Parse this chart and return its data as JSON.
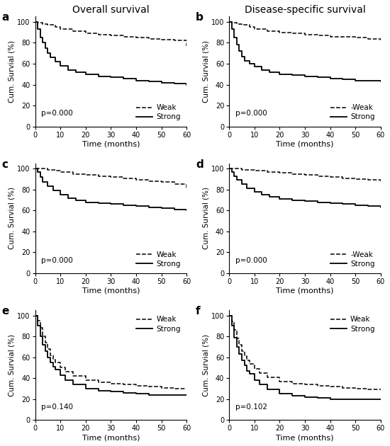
{
  "panels": [
    {
      "label": "a",
      "title": "Overall survival",
      "p_value": "p=0.000",
      "weak": {
        "x": [
          0,
          1,
          3,
          5,
          8,
          10,
          15,
          20,
          25,
          30,
          35,
          40,
          45,
          50,
          55,
          60
        ],
        "y": [
          100,
          99,
          98,
          97,
          95,
          93,
          91,
          89,
          88,
          87,
          86,
          85,
          84,
          83,
          82,
          77
        ]
      },
      "strong": {
        "x": [
          0,
          1,
          2,
          3,
          4,
          5,
          6,
          8,
          10,
          13,
          16,
          20,
          25,
          30,
          35,
          40,
          45,
          50,
          55,
          60
        ],
        "y": [
          100,
          93,
          85,
          80,
          75,
          70,
          66,
          62,
          58,
          54,
          52,
          50,
          48,
          47,
          46,
          44,
          43,
          42,
          41,
          40
        ]
      },
      "weak_label": "Weak",
      "legend_loc": "lower right",
      "legend_bbox": null,
      "ylim": [
        0,
        105
      ],
      "xlim": [
        0,
        60
      ]
    },
    {
      "label": "b",
      "title": "Disease-specific survival",
      "p_value": "p=0.000",
      "weak": {
        "x": [
          0,
          1,
          3,
          5,
          8,
          10,
          15,
          20,
          25,
          30,
          35,
          40,
          45,
          50,
          55,
          60
        ],
        "y": [
          100,
          99,
          98,
          97,
          95,
          93,
          91,
          90,
          89,
          88,
          87,
          86,
          86,
          85,
          84,
          82
        ]
      },
      "strong": {
        "x": [
          0,
          1,
          2,
          3,
          4,
          5,
          6,
          8,
          10,
          13,
          16,
          20,
          25,
          30,
          35,
          40,
          45,
          50,
          55,
          60
        ],
        "y": [
          100,
          93,
          85,
          78,
          72,
          67,
          63,
          60,
          57,
          54,
          52,
          50,
          49,
          48,
          47,
          46,
          45,
          44,
          44,
          43
        ]
      },
      "weak_label": "-Weak",
      "legend_loc": "lower right",
      "legend_bbox": null,
      "ylim": [
        0,
        105
      ],
      "xlim": [
        0,
        60
      ]
    },
    {
      "label": "c",
      "title": "",
      "p_value": "p=0.000",
      "weak": {
        "x": [
          0,
          2,
          5,
          8,
          10,
          15,
          20,
          25,
          30,
          35,
          40,
          45,
          50,
          55,
          60
        ],
        "y": [
          100,
          100,
          99,
          98,
          97,
          95,
          94,
          93,
          92,
          91,
          89,
          88,
          87,
          85,
          81
        ]
      },
      "strong": {
        "x": [
          0,
          1,
          2,
          3,
          5,
          7,
          10,
          13,
          16,
          20,
          25,
          30,
          35,
          40,
          45,
          50,
          55,
          60
        ],
        "y": [
          100,
          97,
          92,
          87,
          83,
          79,
          75,
          72,
          70,
          68,
          67,
          66,
          65,
          64,
          63,
          62,
          61,
          60
        ]
      },
      "weak_label": "Weak",
      "legend_loc": "lower right",
      "legend_bbox": null,
      "ylim": [
        0,
        105
      ],
      "xlim": [
        0,
        60
      ]
    },
    {
      "label": "d",
      "title": "",
      "p_value": "p=0.000",
      "weak": {
        "x": [
          0,
          2,
          5,
          8,
          10,
          15,
          20,
          25,
          30,
          35,
          40,
          45,
          50,
          55,
          60
        ],
        "y": [
          100,
          100,
          99,
          99,
          98,
          97,
          96,
          95,
          94,
          93,
          92,
          91,
          90,
          89,
          87
        ]
      },
      "strong": {
        "x": [
          0,
          1,
          2,
          3,
          5,
          7,
          10,
          13,
          16,
          20,
          25,
          30,
          35,
          40,
          45,
          50,
          55,
          60
        ],
        "y": [
          100,
          97,
          93,
          89,
          85,
          81,
          78,
          75,
          73,
          71,
          70,
          69,
          68,
          67,
          66,
          65,
          64,
          63
        ]
      },
      "weak_label": "-Weak",
      "legend_loc": "lower right",
      "legend_bbox": null,
      "ylim": [
        0,
        105
      ],
      "xlim": [
        0,
        60
      ]
    },
    {
      "label": "e",
      "title": "",
      "p_value": "p=0.140",
      "weak": {
        "x": [
          0,
          1,
          2,
          3,
          4,
          5,
          6,
          7,
          8,
          10,
          12,
          15,
          20,
          25,
          30,
          35,
          40,
          45,
          50,
          55,
          60
        ],
        "y": [
          100,
          95,
          88,
          80,
          74,
          68,
          62,
          58,
          55,
          50,
          46,
          42,
          38,
          36,
          35,
          34,
          33,
          32,
          31,
          30,
          30
        ]
      },
      "strong": {
        "x": [
          0,
          1,
          2,
          3,
          4,
          5,
          6,
          7,
          8,
          10,
          12,
          15,
          20,
          25,
          30,
          35,
          40,
          45,
          50,
          55,
          60
        ],
        "y": [
          100,
          90,
          80,
          72,
          66,
          60,
          55,
          51,
          48,
          43,
          38,
          34,
          30,
          28,
          27,
          26,
          25,
          24,
          24,
          24,
          24
        ]
      },
      "weak_label": "Weak",
      "legend_loc": "upper right",
      "legend_bbox": null,
      "ylim": [
        0,
        105
      ],
      "xlim": [
        0,
        60
      ]
    },
    {
      "label": "f",
      "title": "",
      "p_value": "p=0.102",
      "weak": {
        "x": [
          0,
          1,
          2,
          3,
          4,
          5,
          6,
          7,
          8,
          10,
          12,
          15,
          20,
          25,
          30,
          35,
          40,
          45,
          50,
          55,
          60
        ],
        "y": [
          100,
          94,
          86,
          78,
          72,
          66,
          61,
          57,
          54,
          49,
          45,
          41,
          37,
          35,
          34,
          33,
          32,
          31,
          30,
          29,
          29
        ]
      },
      "strong": {
        "x": [
          0,
          1,
          2,
          3,
          4,
          5,
          6,
          7,
          8,
          10,
          12,
          15,
          20,
          25,
          30,
          35,
          40,
          45,
          50,
          55,
          60
        ],
        "y": [
          100,
          90,
          79,
          70,
          63,
          57,
          52,
          47,
          44,
          38,
          34,
          29,
          25,
          23,
          22,
          21,
          20,
          20,
          20,
          20,
          20
        ]
      },
      "weak_label": "Weak",
      "legend_loc": "upper right",
      "legend_bbox": null,
      "ylim": [
        0,
        105
      ],
      "xlim": [
        0,
        60
      ]
    }
  ],
  "ylabel": "Cum. Survial (%)",
  "xlabel": "Time (months)",
  "xticks": [
    0,
    10,
    20,
    30,
    40,
    50,
    60
  ],
  "yticks": [
    0,
    20,
    40,
    60,
    80,
    100
  ],
  "line_color": "black",
  "strong_label": "Strong",
  "font_size": 7.5,
  "title_fontsize": 10,
  "label_fontsize": 8,
  "tick_fontsize": 7
}
